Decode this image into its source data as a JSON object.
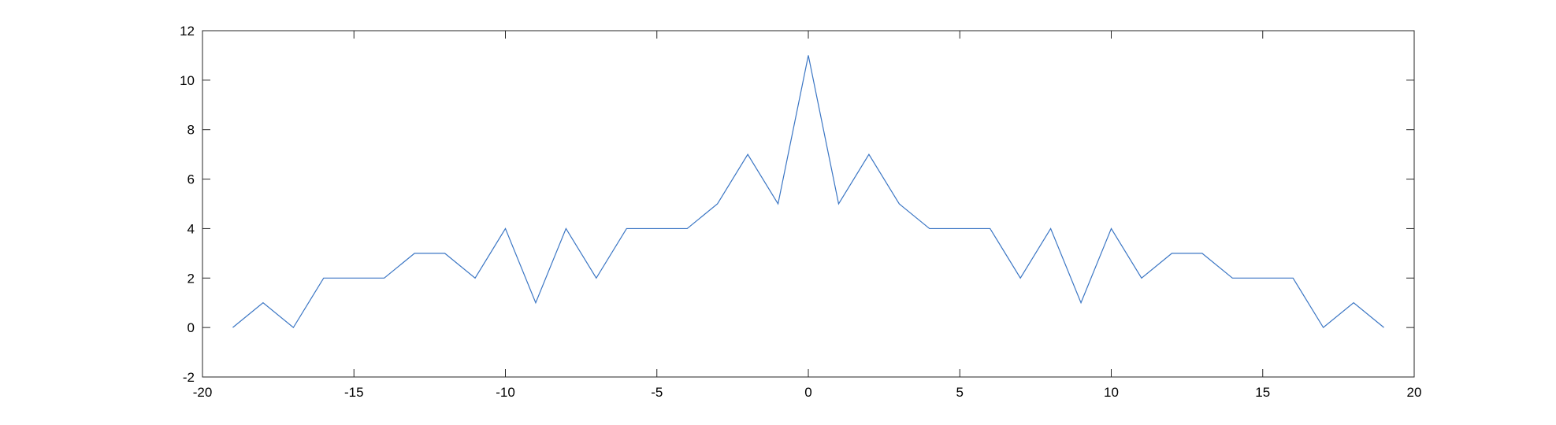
{
  "chart_data": {
    "type": "line",
    "title": "",
    "xlabel": "",
    "ylabel": "",
    "xlim": [
      -20,
      20
    ],
    "ylim": [
      -2,
      12
    ],
    "xticks": [
      -20,
      -15,
      -10,
      -5,
      0,
      5,
      10,
      15,
      20
    ],
    "yticks": [
      -2,
      0,
      2,
      4,
      6,
      8,
      10,
      12
    ],
    "xtick_labels": [
      "-20",
      "-15",
      "-10",
      "-5",
      "0",
      "5",
      "10",
      "15",
      "20"
    ],
    "ytick_labels": [
      "-2",
      "0",
      "2",
      "4",
      "6",
      "8",
      "10",
      "12"
    ],
    "grid": false,
    "box": true,
    "series": [
      {
        "color": "#3b76c4",
        "x": [
          -19,
          -18,
          -17,
          -16,
          -15,
          -14,
          -13,
          -12,
          -11,
          -10,
          -9,
          -8,
          -7,
          -6,
          -5,
          -4,
          -3,
          -2,
          -1,
          0,
          1,
          2,
          3,
          4,
          5,
          6,
          7,
          8,
          9,
          10,
          11,
          12,
          13,
          14,
          15,
          16,
          17,
          18,
          19
        ],
        "y": [
          0,
          1,
          0,
          2,
          2,
          2,
          3,
          3,
          2,
          4,
          1,
          4,
          2,
          4,
          4,
          4,
          5,
          7,
          5,
          11,
          5,
          7,
          5,
          4,
          4,
          4,
          2,
          4,
          1,
          4,
          2,
          3,
          3,
          2,
          2,
          2,
          0,
          1,
          0
        ]
      }
    ]
  }
}
